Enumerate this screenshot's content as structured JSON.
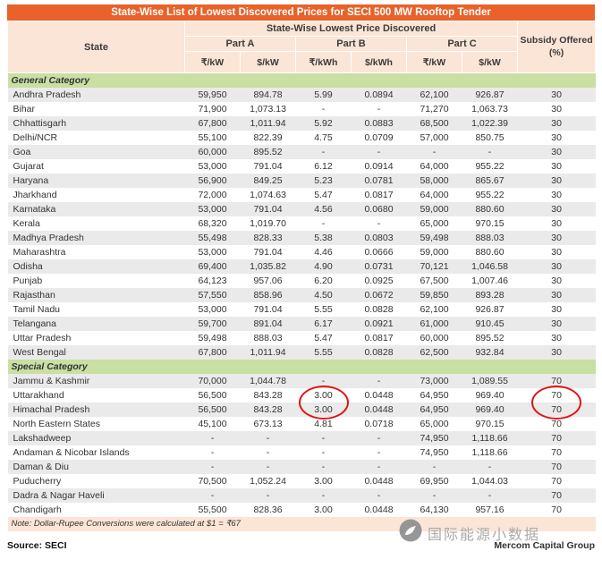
{
  "title": "State-Wise List of Lowest Discovered Prices for SECI 500 MW Rooftop Tender",
  "header": {
    "group_title": "State-Wise Lowest Price Discovered",
    "state_col": "State",
    "subsidy_col": "Subsidy Offered (%)",
    "parts": [
      {
        "label": "Part A",
        "units": [
          "₹/kW",
          "$/kW"
        ]
      },
      {
        "label": "Part B",
        "units": [
          "₹/kWh",
          "$/kWh"
        ]
      },
      {
        "label": "Part C",
        "units": [
          "₹/kW",
          "$/kW"
        ]
      }
    ]
  },
  "sections": [
    {
      "label": "General Category",
      "rows": [
        {
          "state": "Andhra Pradesh",
          "values": [
            "59,950",
            "894.78",
            "5.99",
            "0.0894",
            "62,100",
            "926.87",
            "30"
          ]
        },
        {
          "state": "Bihar",
          "values": [
            "71,900",
            "1,073.13",
            "-",
            "-",
            "71,270",
            "1,063.73",
            "30"
          ]
        },
        {
          "state": "Chhattisgarh",
          "values": [
            "67,800",
            "1,011.94",
            "5.92",
            "0.0883",
            "68,500",
            "1,022.39",
            "30"
          ]
        },
        {
          "state": "Delhi/NCR",
          "values": [
            "55,100",
            "822.39",
            "4.75",
            "0.0709",
            "57,000",
            "850.75",
            "30"
          ]
        },
        {
          "state": "Goa",
          "values": [
            "60,000",
            "895.52",
            "-",
            "-",
            "-",
            "-",
            "30"
          ]
        },
        {
          "state": "Gujarat",
          "values": [
            "53,000",
            "791.04",
            "6.12",
            "0.0914",
            "64,000",
            "955.22",
            "30"
          ]
        },
        {
          "state": "Haryana",
          "values": [
            "56,900",
            "849.25",
            "5.23",
            "0.0781",
            "58,000",
            "865.67",
            "30"
          ]
        },
        {
          "state": "Jharkhand",
          "values": [
            "72,000",
            "1,074.63",
            "5.47",
            "0.0817",
            "64,000",
            "955.22",
            "30"
          ]
        },
        {
          "state": "Karnataka",
          "values": [
            "53,000",
            "791.04",
            "4.56",
            "0.0680",
            "59,000",
            "880.60",
            "30"
          ]
        },
        {
          "state": "Kerala",
          "values": [
            "68,320",
            "1,019.70",
            "-",
            "-",
            "65,000",
            "970.15",
            "30"
          ]
        },
        {
          "state": "Madhya Pradesh",
          "values": [
            "55,498",
            "828.33",
            "5.38",
            "0.0803",
            "59,498",
            "888.03",
            "30"
          ]
        },
        {
          "state": "Maharashtra",
          "values": [
            "53,000",
            "791.04",
            "4.46",
            "0.0666",
            "59,000",
            "880.60",
            "30"
          ]
        },
        {
          "state": "Odisha",
          "values": [
            "69,400",
            "1,035.82",
            "4.90",
            "0.0731",
            "70,121",
            "1,046.58",
            "30"
          ]
        },
        {
          "state": "Punjab",
          "values": [
            "64,123",
            "957.06",
            "6.20",
            "0.0925",
            "67,500",
            "1,007.46",
            "30"
          ]
        },
        {
          "state": "Rajasthan",
          "values": [
            "57,550",
            "858.96",
            "4.50",
            "0.0672",
            "59,850",
            "893.28",
            "30"
          ]
        },
        {
          "state": "Tamil Nadu",
          "values": [
            "53,000",
            "791.04",
            "5.55",
            "0.0828",
            "62,100",
            "926.87",
            "30"
          ]
        },
        {
          "state": "Telangana",
          "values": [
            "59,700",
            "891.04",
            "6.17",
            "0.0921",
            "61,000",
            "910.45",
            "30"
          ]
        },
        {
          "state": "Uttar Pradesh",
          "values": [
            "59,498",
            "888.03",
            "5.47",
            "0.0817",
            "60,000",
            "895.52",
            "30"
          ]
        },
        {
          "state": "West Bengal",
          "values": [
            "67,800",
            "1,011.94",
            "5.55",
            "0.0828",
            "62,500",
            "932.84",
            "30"
          ]
        }
      ]
    },
    {
      "label": "Special Category",
      "rows": [
        {
          "state": "Jammu & Kashmir",
          "values": [
            "70,000",
            "1,044.78",
            "-",
            "-",
            "73,000",
            "1,089.55",
            "70"
          ]
        },
        {
          "state": "Uttarakhand",
          "values": [
            "56,500",
            "843.28",
            "3.00",
            "0.0448",
            "64,950",
            "969.40",
            "70"
          ]
        },
        {
          "state": "Himachal Pradesh",
          "values": [
            "56,500",
            "843.28",
            "3.00",
            "0.0448",
            "64,950",
            "969.40",
            "70"
          ]
        },
        {
          "state": "North Eastern States",
          "values": [
            "45,100",
            "673.13",
            "4.81",
            "0.0718",
            "65,000",
            "970.15",
            "70"
          ]
        },
        {
          "state": "Lakshadweep",
          "values": [
            "-",
            "-",
            "-",
            "-",
            "74,950",
            "1,118.66",
            "70"
          ]
        },
        {
          "state": "Andaman & Nicobar Islands",
          "values": [
            "-",
            "-",
            "-",
            "-",
            "74,950",
            "1,118.66",
            "70"
          ]
        },
        {
          "state": "Daman & Diu",
          "values": [
            "-",
            "-",
            "-",
            "-",
            "-",
            "-",
            "70"
          ]
        },
        {
          "state": "Puducherry",
          "values": [
            "70,500",
            "1,052.24",
            "3.00",
            "0.0448",
            "69,950",
            "1,044.03",
            "70"
          ]
        },
        {
          "state": "Dadra & Nagar Haveli",
          "values": [
            "-",
            "-",
            "-",
            "-",
            "-",
            "-",
            "70"
          ]
        },
        {
          "state": "Chandigarh",
          "values": [
            "55,500",
            "828.36",
            "3.00",
            "0.0448",
            "64,130",
            "957.16",
            "70"
          ]
        }
      ]
    }
  ],
  "note": "Note: Dollar-Rupee Conversions were calculated at $1 = ₹67",
  "footer": {
    "source": "Source: SECI",
    "credit": "Mercom Capital Group"
  },
  "watermark": "国际能源小数据",
  "annotations": {
    "color": "#e01410",
    "circled_states": [
      "Uttarakhand",
      "Himachal Pradesh"
    ],
    "circled_value_indexes": [
      2,
      6
    ]
  },
  "colors": {
    "title_bar": "#E8622A",
    "header_bg": "#FBE5D6",
    "section_bg": "#C9DFA3",
    "stripe_bg": "#EAEAEA",
    "annotation_red": "#e01410",
    "watermark_gray": "#a3a3a3"
  }
}
